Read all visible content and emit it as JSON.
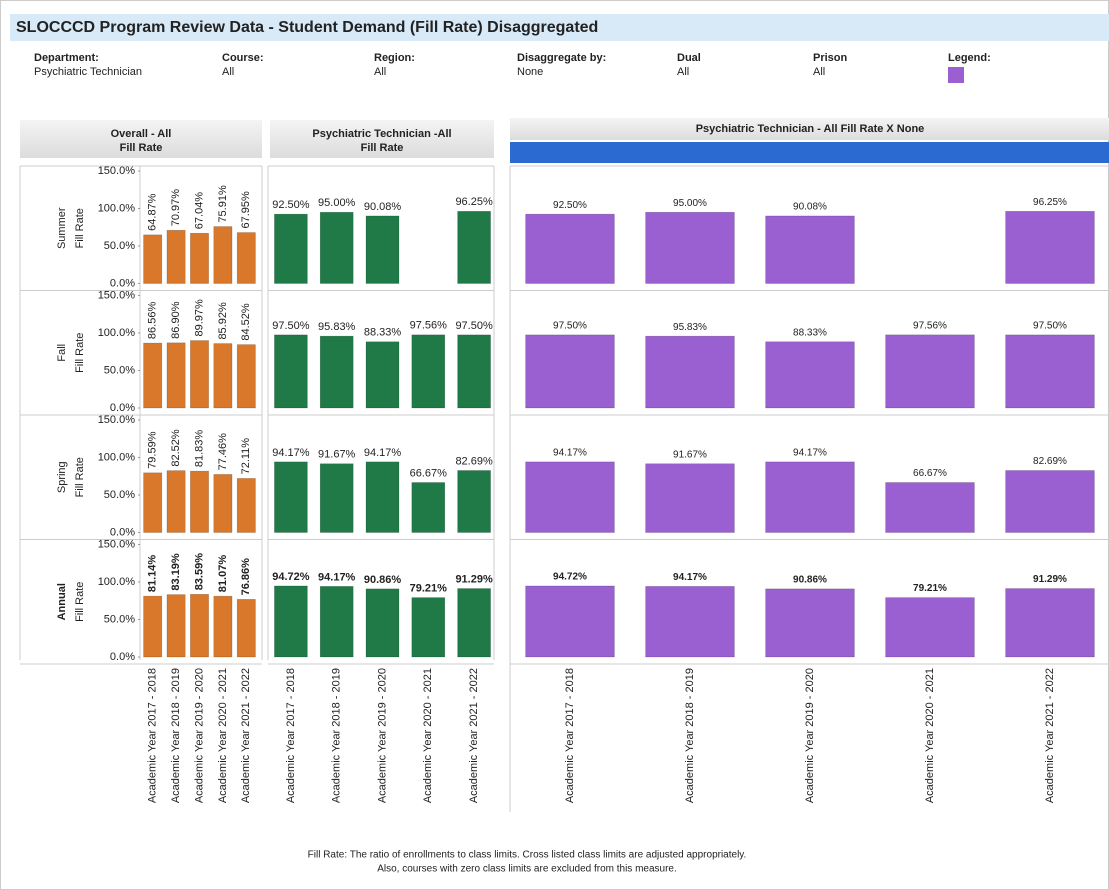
{
  "header": {
    "title": "SLOCCCD Program Review Data - Student Demand (Fill Rate) Disaggregated",
    "filters": [
      {
        "label": "Department:",
        "value": "Psychiatric Technician"
      },
      {
        "label": "Course:",
        "value": "All"
      },
      {
        "label": "Region:",
        "value": "All"
      },
      {
        "label": "Disaggregate by:",
        "value": "None"
      },
      {
        "label": "Dual",
        "value": "All"
      },
      {
        "label": "Prison",
        "value": "All"
      }
    ],
    "legend": {
      "label": "Legend:",
      "color": "#9a5fd0"
    }
  },
  "rows": [
    "Summer",
    "Fall",
    "Spring",
    "Annual"
  ],
  "row_measure": "Fill Rate",
  "chart_data": [
    {
      "type": "bar",
      "title": [
        "Overall - All",
        "Fill Rate"
      ],
      "color": "#d9782a",
      "label_style": "vertical",
      "categories": [
        "Academic Year 2017 - 2018",
        "Academic Year 2018 - 2019",
        "Academic Year 2019 - 2020",
        "Academic Year 2020 - 2021",
        "Academic Year 2021 - 2022"
      ],
      "ylim": [
        0,
        150
      ],
      "yticks": [
        {
          "value": 0,
          "label": "0.0%"
        },
        {
          "value": 50,
          "label": "50.0%"
        },
        {
          "value": 100,
          "label": "100.0%"
        },
        {
          "value": 150,
          "label": "150.0%"
        }
      ],
      "panels": [
        {
          "values": [
            64.87,
            70.97,
            67.04,
            75.91,
            67.95
          ],
          "value_labels": [
            "64.87%",
            "70.97%",
            "67.04%",
            "75.91%",
            "67.95%"
          ]
        },
        {
          "values": [
            86.56,
            86.9,
            89.97,
            85.92,
            84.52
          ],
          "value_labels": [
            "86.56%",
            "86.90%",
            "89.97%",
            "85.92%",
            "84.52%"
          ]
        },
        {
          "values": [
            79.59,
            82.52,
            81.83,
            77.46,
            72.11
          ],
          "value_labels": [
            "79.59%",
            "82.52%",
            "81.83%",
            "77.46%",
            "72.11%"
          ]
        },
        {
          "values": [
            81.14,
            83.19,
            83.59,
            81.07,
            76.86
          ],
          "value_labels": [
            "81.14%",
            "83.19%",
            "83.59%",
            "81.07%",
            "76.86%"
          ]
        }
      ]
    },
    {
      "type": "bar",
      "title": [
        "Psychiatric Technician -All",
        "Fill Rate"
      ],
      "color": "#1f7a48",
      "label_style": "horizontal",
      "categories": [
        "Academic Year 2017 - 2018",
        "Academic Year 2018 - 2019",
        "Academic Year 2019 - 2020",
        "Academic Year 2020 - 2021",
        "Academic Year 2021 - 2022"
      ],
      "ylim": [
        0,
        150
      ],
      "panels": [
        {
          "values": [
            92.5,
            95.0,
            90.08,
            null,
            96.25
          ],
          "value_labels": [
            "92.50%",
            "95.00%",
            "90.08%",
            null,
            "96.25%"
          ]
        },
        {
          "values": [
            97.5,
            95.83,
            88.33,
            97.56,
            97.5
          ],
          "value_labels": [
            "97.50%",
            "95.83%",
            "88.33%",
            "97.56%",
            "97.50%"
          ]
        },
        {
          "values": [
            94.17,
            91.67,
            94.17,
            66.67,
            82.69
          ],
          "value_labels": [
            "94.17%",
            "91.67%",
            "94.17%",
            "66.67%",
            "82.69%"
          ]
        },
        {
          "values": [
            94.72,
            94.17,
            90.86,
            79.21,
            91.29
          ],
          "value_labels": [
            "94.72%",
            "94.17%",
            "90.86%",
            "79.21%",
            "91.29%"
          ]
        }
      ]
    },
    {
      "type": "bar",
      "title": [
        "Psychiatric Technician - All  Fill Rate X None"
      ],
      "color": "#9a5fd0",
      "label_style": "horizontal",
      "categories": [
        "Academic Year 2017 - 2018",
        "Academic Year 2018 - 2019",
        "Academic Year 2019 - 2020",
        "Academic Year 2020 - 2021",
        "Academic Year 2021 - 2022"
      ],
      "ylim": [
        0,
        150
      ],
      "panels": [
        {
          "values": [
            92.5,
            95.0,
            90.08,
            null,
            96.25
          ],
          "value_labels": [
            "92.50%",
            "95.00%",
            "90.08%",
            null,
            "96.25%"
          ]
        },
        {
          "values": [
            97.5,
            95.83,
            88.33,
            97.56,
            97.5
          ],
          "value_labels": [
            "97.50%",
            "95.83%",
            "88.33%",
            "97.56%",
            "97.50%"
          ]
        },
        {
          "values": [
            94.17,
            91.67,
            94.17,
            66.67,
            82.69
          ],
          "value_labels": [
            "94.17%",
            "91.67%",
            "94.17%",
            "66.67%",
            "82.69%"
          ]
        },
        {
          "values": [
            94.72,
            94.17,
            90.86,
            79.21,
            91.29
          ],
          "value_labels": [
            "94.72%",
            "94.17%",
            "90.86%",
            "79.21%",
            "91.29%"
          ]
        }
      ]
    }
  ],
  "footnote": [
    "Fill Rate: The ratio of enrollments to class limits. Cross listed class limits are adjusted appropriately.",
    "Also, courses with zero class limits are excluded from this measure."
  ]
}
